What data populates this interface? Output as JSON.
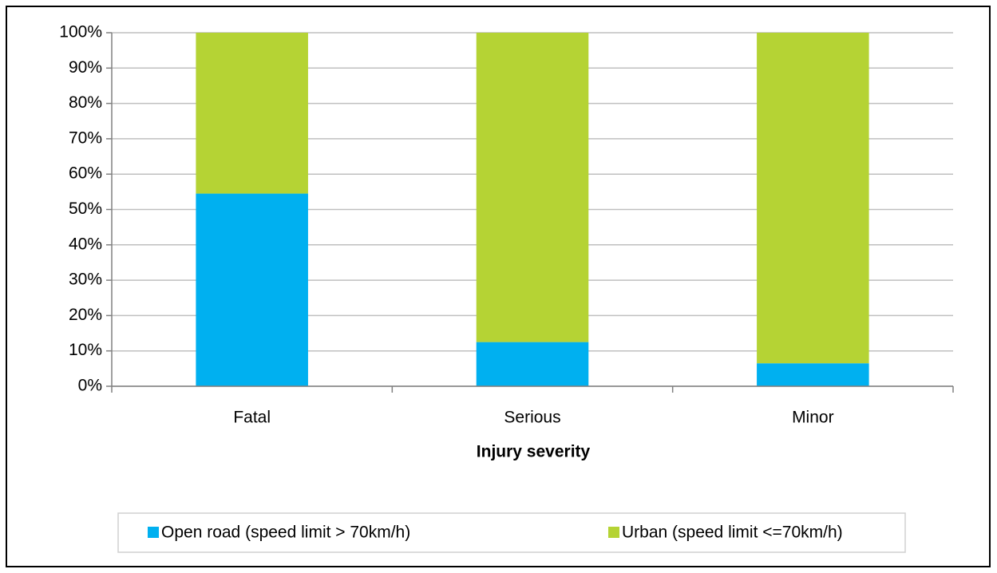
{
  "chart_data": {
    "type": "stacked_bar",
    "x_label": "Injury severity",
    "categories": [
      "Fatal",
      "Serious",
      "Minor"
    ],
    "series": [
      {
        "name": "Open road (speed limit > 70km/h)",
        "color": "#00b0f0",
        "values": [
          54.5,
          12.5,
          6.5
        ]
      },
      {
        "name": "Urban (speed limit <=70km/h)",
        "color": "#b5d334",
        "values": [
          45.5,
          87.5,
          93.5
        ]
      }
    ],
    "ylim": [
      0,
      100
    ],
    "yticks": [
      {
        "value": 0,
        "label": "0%"
      },
      {
        "value": 10,
        "label": "10%"
      },
      {
        "value": 20,
        "label": "20%"
      },
      {
        "value": 30,
        "label": "30%"
      },
      {
        "value": 40,
        "label": "40%"
      },
      {
        "value": 50,
        "label": "50%"
      },
      {
        "value": 60,
        "label": "60%"
      },
      {
        "value": 70,
        "label": "70%"
      },
      {
        "value": 80,
        "label": "80%"
      },
      {
        "value": 90,
        "label": "90%"
      },
      {
        "value": 100,
        "label": "100%"
      }
    ],
    "grid": true,
    "legend": "bottom"
  }
}
